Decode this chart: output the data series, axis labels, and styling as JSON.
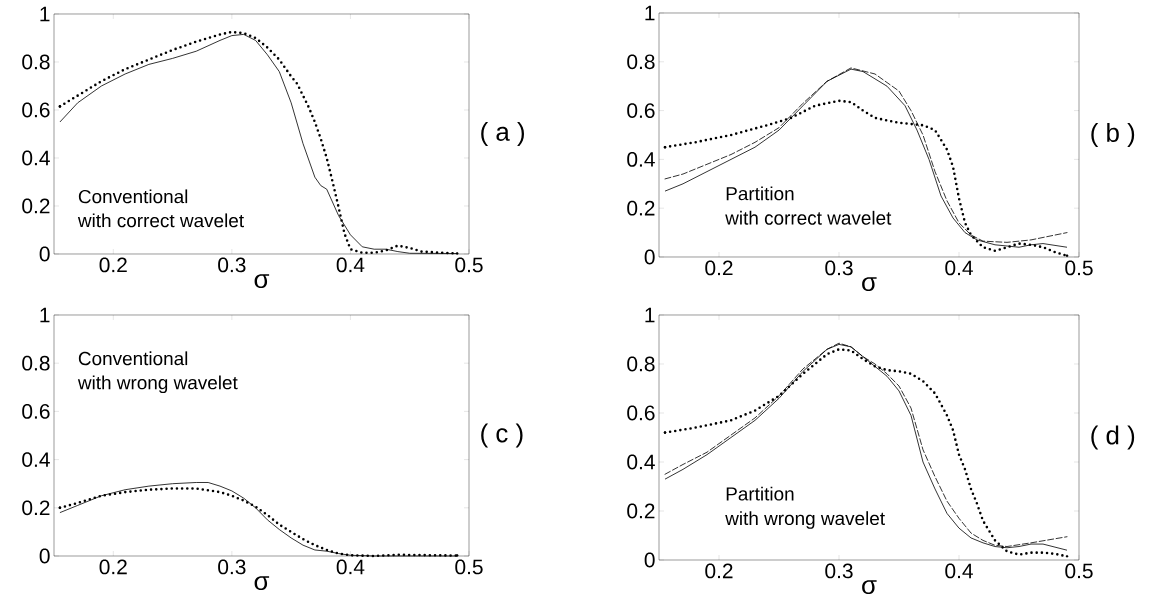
{
  "chart_data": [
    {
      "type": "line",
      "xlabel": "σ",
      "xlim": [
        0.15,
        0.5
      ],
      "ylim": [
        0,
        1
      ],
      "xticks": [
        0.2,
        0.3,
        0.4,
        0.5
      ],
      "yticks": [
        0,
        0.2,
        0.4,
        0.6,
        0.8,
        1
      ],
      "grid": false,
      "annotations": [
        "Conventional",
        "with correct wavelet",
        "( a )"
      ],
      "series": [
        {
          "color": "#000000",
          "line_style": "solid",
          "x": [
            0.155,
            0.17,
            0.19,
            0.21,
            0.23,
            0.25,
            0.27,
            0.29,
            0.3,
            0.31,
            0.32,
            0.33,
            0.34,
            0.35,
            0.36,
            0.37,
            0.375,
            0.38,
            0.39,
            0.4,
            0.41,
            0.42,
            0.43,
            0.44,
            0.45,
            0.49
          ],
          "values": [
            0.55,
            0.63,
            0.7,
            0.75,
            0.79,
            0.815,
            0.845,
            0.89,
            0.91,
            0.915,
            0.89,
            0.83,
            0.76,
            0.63,
            0.46,
            0.32,
            0.285,
            0.27,
            0.16,
            0.08,
            0.03,
            0.02,
            0.02,
            0.01,
            0.003,
            0.002
          ]
        },
        {
          "color": "#000000",
          "line_style": "dotted",
          "x": [
            0.155,
            0.17,
            0.19,
            0.21,
            0.23,
            0.25,
            0.27,
            0.29,
            0.3,
            0.31,
            0.32,
            0.33,
            0.34,
            0.35,
            0.355,
            0.36,
            0.365,
            0.37,
            0.375,
            0.38,
            0.385,
            0.39,
            0.395,
            0.4,
            0.41,
            0.42,
            0.43,
            0.44,
            0.45,
            0.46,
            0.49
          ],
          "values": [
            0.615,
            0.66,
            0.72,
            0.77,
            0.81,
            0.85,
            0.885,
            0.915,
            0.925,
            0.92,
            0.9,
            0.86,
            0.81,
            0.74,
            0.71,
            0.66,
            0.61,
            0.55,
            0.48,
            0.4,
            0.3,
            0.195,
            0.085,
            0.02,
            0.005,
            0.005,
            0.015,
            0.035,
            0.025,
            0.01,
            0.002
          ]
        }
      ]
    },
    {
      "type": "line",
      "xlabel": "σ",
      "xlim": [
        0.15,
        0.5
      ],
      "ylim": [
        0,
        1
      ],
      "xticks": [
        0.2,
        0.3,
        0.4,
        0.5
      ],
      "yticks": [
        0,
        0.2,
        0.4,
        0.6,
        0.8,
        1
      ],
      "grid": false,
      "annotations": [
        "Partition",
        "with correct wavelet",
        "( b )"
      ],
      "series": [
        {
          "color": "#000000",
          "line_style": "solid",
          "x": [
            0.155,
            0.17,
            0.19,
            0.21,
            0.23,
            0.25,
            0.27,
            0.29,
            0.31,
            0.32,
            0.34,
            0.355,
            0.365,
            0.375,
            0.385,
            0.395,
            0.405,
            0.415,
            0.43,
            0.45,
            0.46,
            0.47,
            0.49
          ],
          "values": [
            0.27,
            0.3,
            0.35,
            0.4,
            0.45,
            0.52,
            0.62,
            0.72,
            0.77,
            0.76,
            0.7,
            0.62,
            0.52,
            0.4,
            0.25,
            0.16,
            0.1,
            0.07,
            0.05,
            0.04,
            0.05,
            0.055,
            0.04
          ]
        },
        {
          "color": "#000000",
          "line_style": "dashed",
          "x": [
            0.155,
            0.17,
            0.19,
            0.21,
            0.23,
            0.25,
            0.27,
            0.29,
            0.31,
            0.33,
            0.35,
            0.36,
            0.37,
            0.38,
            0.39,
            0.4,
            0.41,
            0.42,
            0.44,
            0.46,
            0.49
          ],
          "values": [
            0.32,
            0.34,
            0.38,
            0.42,
            0.47,
            0.53,
            0.63,
            0.72,
            0.775,
            0.75,
            0.68,
            0.6,
            0.5,
            0.35,
            0.23,
            0.14,
            0.09,
            0.065,
            0.06,
            0.07,
            0.1
          ]
        },
        {
          "color": "#000000",
          "line_style": "dotted",
          "x": [
            0.155,
            0.18,
            0.21,
            0.24,
            0.26,
            0.28,
            0.3,
            0.31,
            0.32,
            0.33,
            0.35,
            0.37,
            0.38,
            0.385,
            0.39,
            0.395,
            0.4,
            0.405,
            0.41,
            0.42,
            0.43,
            0.44,
            0.45,
            0.46,
            0.47,
            0.48,
            0.49
          ],
          "values": [
            0.45,
            0.47,
            0.5,
            0.54,
            0.57,
            0.62,
            0.64,
            0.635,
            0.6,
            0.57,
            0.55,
            0.54,
            0.52,
            0.48,
            0.44,
            0.37,
            0.24,
            0.14,
            0.09,
            0.04,
            0.025,
            0.04,
            0.055,
            0.05,
            0.04,
            0.02,
            0.005
          ]
        }
      ]
    },
    {
      "type": "line",
      "xlabel": "σ",
      "xlim": [
        0.15,
        0.5
      ],
      "ylim": [
        0,
        1
      ],
      "xticks": [
        0.2,
        0.3,
        0.4,
        0.5
      ],
      "yticks": [
        0,
        0.2,
        0.4,
        0.6,
        0.8,
        1
      ],
      "grid": false,
      "annotations": [
        "Conventional",
        "with wrong wavelet",
        "( c )"
      ],
      "series": [
        {
          "color": "#000000",
          "line_style": "solid",
          "x": [
            0.155,
            0.17,
            0.19,
            0.21,
            0.23,
            0.25,
            0.27,
            0.28,
            0.29,
            0.3,
            0.31,
            0.32,
            0.33,
            0.34,
            0.35,
            0.36,
            0.37,
            0.38,
            0.39,
            0.4,
            0.42,
            0.49
          ],
          "values": [
            0.18,
            0.21,
            0.25,
            0.275,
            0.29,
            0.3,
            0.305,
            0.305,
            0.29,
            0.27,
            0.24,
            0.2,
            0.15,
            0.11,
            0.075,
            0.045,
            0.025,
            0.02,
            0.01,
            0.003,
            0,
            0
          ]
        },
        {
          "color": "#000000",
          "line_style": "dotted",
          "x": [
            0.155,
            0.17,
            0.19,
            0.21,
            0.23,
            0.25,
            0.27,
            0.29,
            0.3,
            0.31,
            0.32,
            0.33,
            0.34,
            0.35,
            0.36,
            0.37,
            0.38,
            0.39,
            0.4,
            0.42,
            0.44,
            0.49
          ],
          "values": [
            0.2,
            0.22,
            0.25,
            0.265,
            0.275,
            0.28,
            0.28,
            0.265,
            0.25,
            0.23,
            0.205,
            0.17,
            0.13,
            0.1,
            0.07,
            0.045,
            0.025,
            0.01,
            0.003,
            0,
            0.005,
            0.002
          ]
        }
      ]
    },
    {
      "type": "line",
      "xlabel": "σ",
      "xlim": [
        0.15,
        0.5
      ],
      "ylim": [
        0,
        1
      ],
      "xticks": [
        0.2,
        0.3,
        0.4,
        0.5
      ],
      "yticks": [
        0,
        0.2,
        0.4,
        0.6,
        0.8,
        1
      ],
      "grid": false,
      "annotations": [
        "Partition",
        "with wrong wavelet",
        "( d )"
      ],
      "series": [
        {
          "color": "#000000",
          "line_style": "solid",
          "x": [
            0.155,
            0.17,
            0.19,
            0.21,
            0.23,
            0.25,
            0.27,
            0.29,
            0.3,
            0.31,
            0.32,
            0.33,
            0.34,
            0.35,
            0.36,
            0.37,
            0.38,
            0.39,
            0.4,
            0.41,
            0.42,
            0.43,
            0.44,
            0.45,
            0.46,
            0.47,
            0.49
          ],
          "values": [
            0.33,
            0.37,
            0.43,
            0.5,
            0.57,
            0.66,
            0.77,
            0.86,
            0.88,
            0.87,
            0.83,
            0.79,
            0.75,
            0.69,
            0.59,
            0.4,
            0.29,
            0.19,
            0.13,
            0.09,
            0.07,
            0.055,
            0.05,
            0.055,
            0.065,
            0.065,
            0.04
          ]
        },
        {
          "color": "#000000",
          "line_style": "dashed",
          "x": [
            0.155,
            0.17,
            0.19,
            0.21,
            0.23,
            0.25,
            0.27,
            0.29,
            0.3,
            0.31,
            0.32,
            0.33,
            0.34,
            0.35,
            0.36,
            0.37,
            0.38,
            0.39,
            0.4,
            0.41,
            0.42,
            0.43,
            0.44,
            0.46,
            0.49
          ],
          "values": [
            0.35,
            0.39,
            0.44,
            0.51,
            0.58,
            0.67,
            0.78,
            0.86,
            0.885,
            0.87,
            0.83,
            0.8,
            0.76,
            0.71,
            0.62,
            0.45,
            0.34,
            0.24,
            0.17,
            0.11,
            0.08,
            0.06,
            0.055,
            0.07,
            0.095
          ]
        },
        {
          "color": "#000000",
          "line_style": "dotted",
          "x": [
            0.155,
            0.18,
            0.21,
            0.23,
            0.25,
            0.27,
            0.29,
            0.3,
            0.31,
            0.32,
            0.33,
            0.34,
            0.35,
            0.36,
            0.37,
            0.38,
            0.39,
            0.395,
            0.4,
            0.405,
            0.41,
            0.415,
            0.42,
            0.43,
            0.44,
            0.45,
            0.46,
            0.47,
            0.48,
            0.49
          ],
          "values": [
            0.52,
            0.54,
            0.57,
            0.61,
            0.67,
            0.76,
            0.84,
            0.86,
            0.855,
            0.82,
            0.79,
            0.775,
            0.77,
            0.76,
            0.73,
            0.68,
            0.59,
            0.53,
            0.43,
            0.37,
            0.29,
            0.23,
            0.16,
            0.08,
            0.035,
            0.022,
            0.03,
            0.03,
            0.025,
            0.015
          ]
        }
      ]
    }
  ]
}
